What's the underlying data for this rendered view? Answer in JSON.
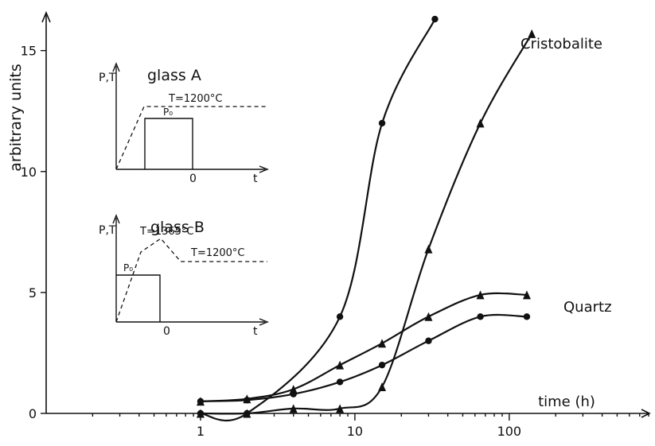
{
  "chart_data": {
    "type": "scatter",
    "title": "",
    "xlabel": "time (h)",
    "ylabel": "arbitrary units",
    "x_scale": "log",
    "xlim": [
      0.1,
      800
    ],
    "ylim": [
      0,
      16.5
    ],
    "x_tick_labels": [
      {
        "value": 1,
        "label": "1"
      },
      {
        "value": 10,
        "label": "10"
      },
      {
        "value": 100,
        "label": "100"
      }
    ],
    "y_tick_labels": [
      {
        "value": 0,
        "label": "0"
      },
      {
        "value": 5,
        "label": "5"
      },
      {
        "value": 10,
        "label": "10"
      },
      {
        "value": 15,
        "label": "15"
      }
    ],
    "grid": false,
    "series": [
      {
        "name": "Cristobalite",
        "marker": "circle",
        "points": [
          [
            1,
            0
          ],
          [
            2,
            0
          ],
          [
            8,
            4
          ],
          [
            15,
            12
          ],
          [
            33,
            16.3
          ]
        ]
      },
      {
        "name": "Cristobalite",
        "marker": "triangle",
        "points": [
          [
            1,
            0
          ],
          [
            2,
            0
          ],
          [
            4,
            0.2
          ],
          [
            8,
            0.2
          ],
          [
            15,
            1.1
          ],
          [
            30,
            6.8
          ],
          [
            65,
            12
          ],
          [
            140,
            15.7
          ]
        ]
      },
      {
        "name": "Quartz",
        "marker": "triangle",
        "points": [
          [
            1,
            0.5
          ],
          [
            2,
            0.6
          ],
          [
            4,
            1.0
          ],
          [
            8,
            2.0
          ],
          [
            15,
            2.9
          ],
          [
            30,
            4.0
          ],
          [
            65,
            4.9
          ],
          [
            130,
            4.9
          ]
        ]
      },
      {
        "name": "Quartz",
        "marker": "circle",
        "points": [
          [
            1,
            0.5
          ],
          [
            2,
            0.55
          ],
          [
            4,
            0.8
          ],
          [
            8,
            1.3
          ],
          [
            15,
            2.0
          ],
          [
            30,
            3.0
          ],
          [
            65,
            4.0
          ],
          [
            130,
            4.0
          ]
        ]
      }
    ],
    "annotations": [
      {
        "text": "Cristobalite"
      },
      {
        "text": "Quartz"
      }
    ],
    "insets": [
      {
        "title": "glass A",
        "y_label": "P,T",
        "x_label": "t",
        "zero_label": "0",
        "temperature_label": "T=1200°C",
        "pressure_label": "P₀"
      },
      {
        "title": "glass B",
        "y_label": "P,T",
        "x_label": "t",
        "zero_label": "0",
        "temperature_peak_label": "T=1365°C",
        "temperature_label": "T=1200°C",
        "pressure_label": "P₀"
      }
    ]
  }
}
